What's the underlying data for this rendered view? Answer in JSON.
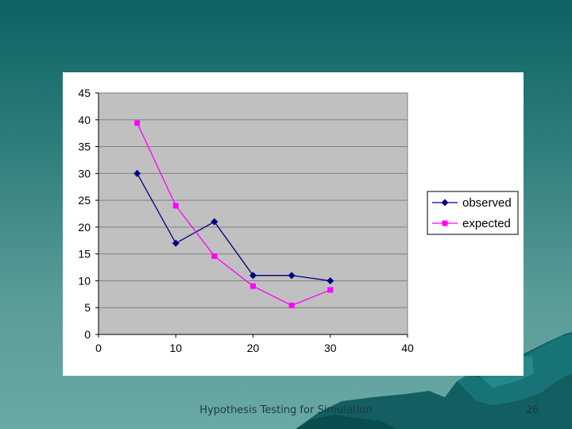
{
  "slide": {
    "footer": "Hypothesis Testing for Simulation",
    "number": "26"
  },
  "colors": {
    "plot_background": "#c0c0c0",
    "gridline": "#808080",
    "observed": "#000080",
    "expected": "#ff00ff"
  },
  "chart_data": {
    "type": "line",
    "xlim": [
      0,
      40
    ],
    "ylim": [
      0,
      45
    ],
    "x_ticks": [
      0,
      10,
      20,
      30,
      40
    ],
    "y_ticks": [
      0,
      5,
      10,
      15,
      20,
      25,
      30,
      35,
      40,
      45
    ],
    "grid": true,
    "legend_position": "right",
    "series": [
      {
        "name": "observed",
        "marker": "diamond",
        "x": [
          5,
          10,
          15,
          20,
          25,
          30
        ],
        "y": [
          30,
          17,
          21,
          11,
          11,
          10
        ]
      },
      {
        "name": "expected",
        "marker": "square",
        "x": [
          5,
          10,
          15,
          20,
          25,
          30
        ],
        "y": [
          39.4,
          24,
          14.6,
          9,
          5.4,
          8.3
        ]
      }
    ]
  }
}
